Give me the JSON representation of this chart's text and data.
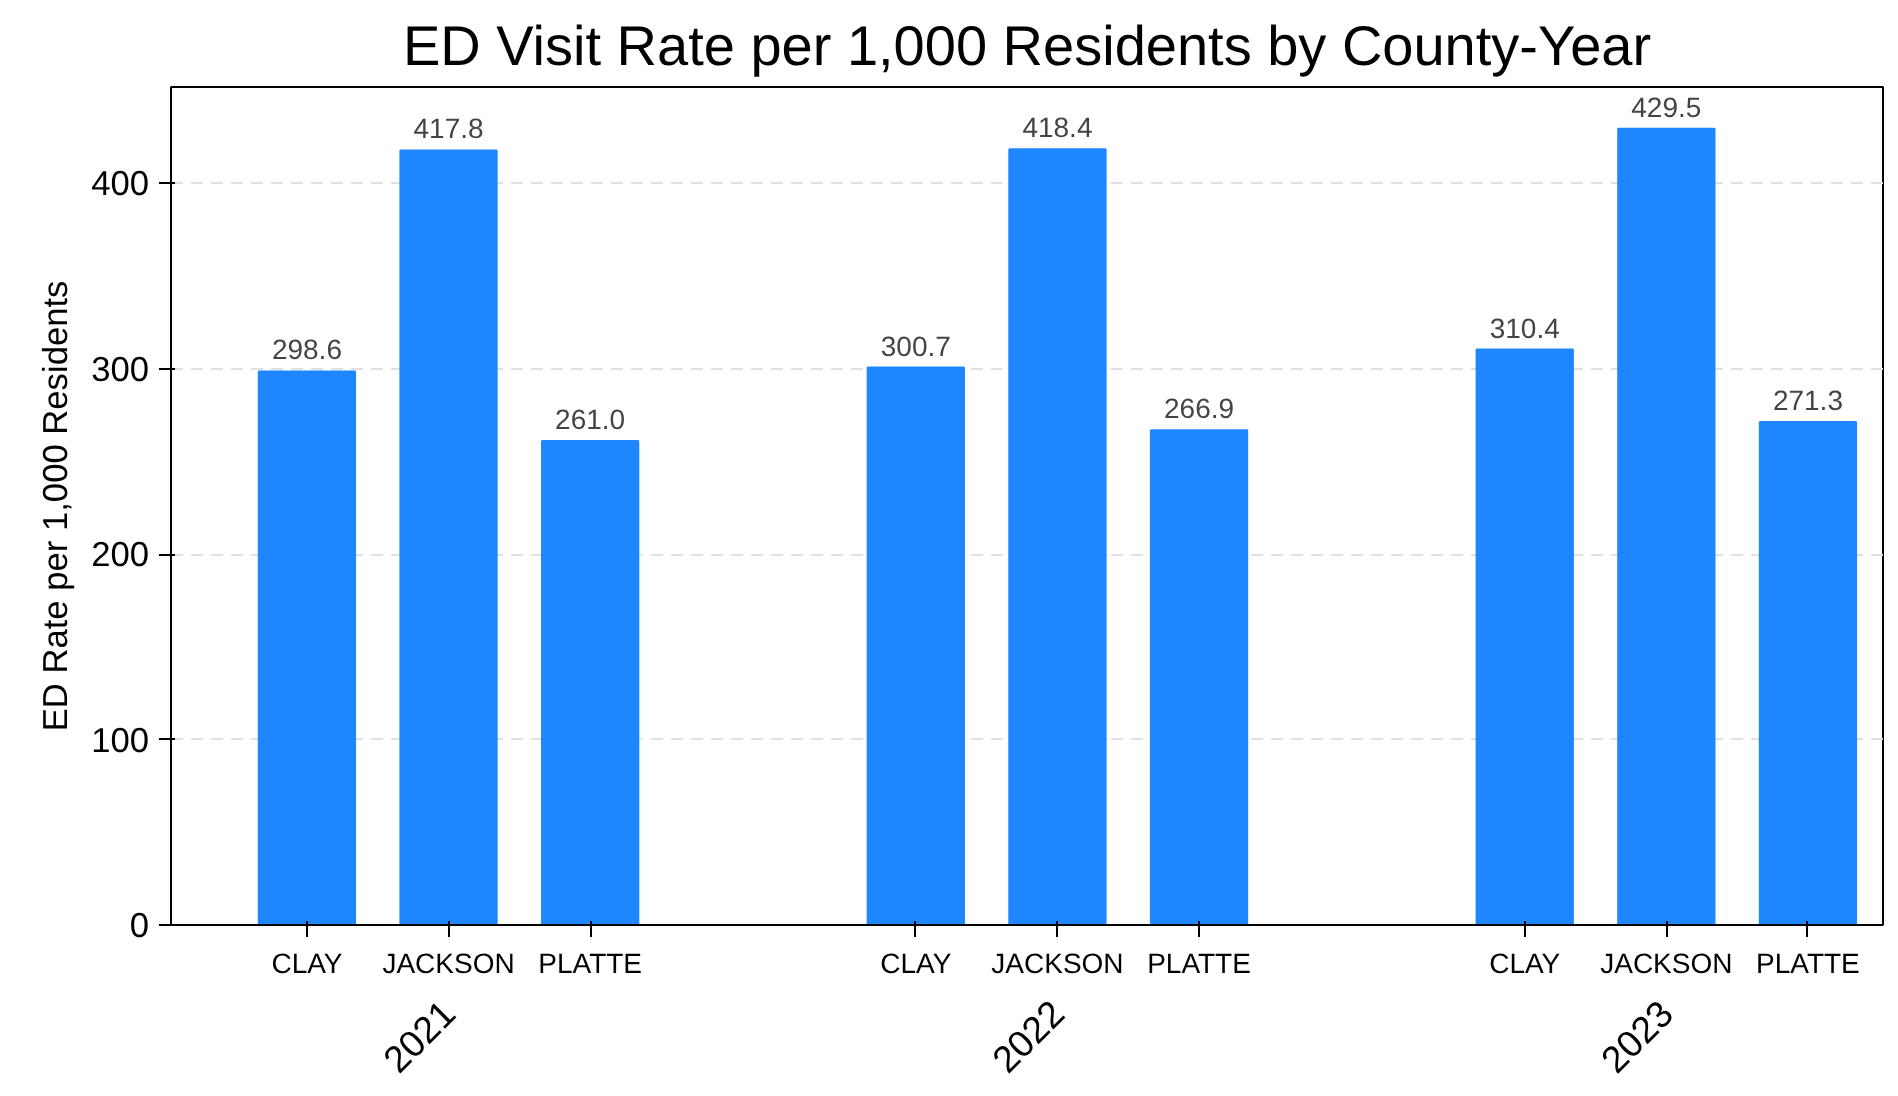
{
  "chart_data": {
    "type": "bar",
    "title": "ED Visit Rate per 1,000 Residents by County-Year",
    "ylabel": "ED Rate per 1,000 Residents",
    "categories": [
      "CLAY",
      "JACKSON",
      "PLATTE",
      "CLAY",
      "JACKSON",
      "PLATTE",
      "CLAY",
      "JACKSON",
      "PLATTE"
    ],
    "values": [
      298.6,
      417.8,
      261.0,
      300.7,
      418.4,
      266.9,
      310.4,
      429.5,
      271.3
    ],
    "value_labels": [
      "298.6",
      "417.8",
      "261.0",
      "300.7",
      "418.4",
      "266.9",
      "310.4",
      "429.5",
      "271.3"
    ],
    "color": "#1e87ff",
    "annotations": [
      "2021",
      "2022",
      "2023"
    ],
    "ylim": [
      0,
      452
    ],
    "yticks": [
      0,
      100,
      200,
      300,
      400
    ],
    "grid": "y"
  }
}
